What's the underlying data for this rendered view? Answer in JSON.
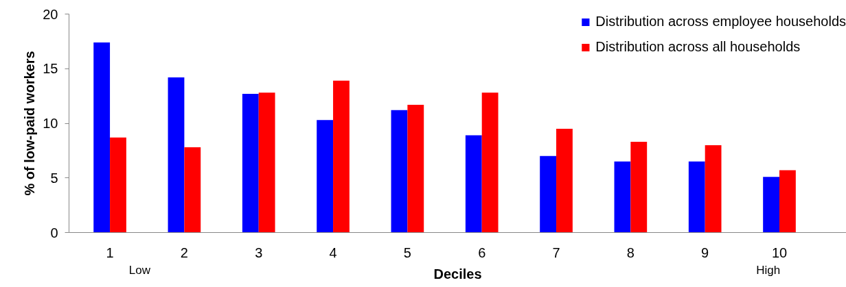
{
  "chart_data": {
    "type": "bar",
    "xlabel": "Deciles",
    "ylabel": "% of low-paid workers",
    "categories": [
      "1",
      "2",
      "3",
      "4",
      "5",
      "6",
      "7",
      "8",
      "9",
      "10"
    ],
    "series": [
      {
        "name": "Distribution across employee households",
        "color": "#0000ff",
        "values": [
          17.4,
          14.2,
          12.7,
          10.3,
          11.2,
          8.9,
          7.0,
          6.5,
          6.5,
          5.1
        ]
      },
      {
        "name": "Distribution across all households",
        "color": "#ff0000",
        "values": [
          8.7,
          7.8,
          12.8,
          13.9,
          11.7,
          12.8,
          9.5,
          8.3,
          8.0,
          5.7
        ]
      }
    ],
    "ylim": [
      0,
      20
    ],
    "yticks": [
      0,
      5,
      10,
      15,
      20
    ],
    "annotations": [
      "Low",
      "High"
    ],
    "grid": false,
    "legend": "top right"
  }
}
